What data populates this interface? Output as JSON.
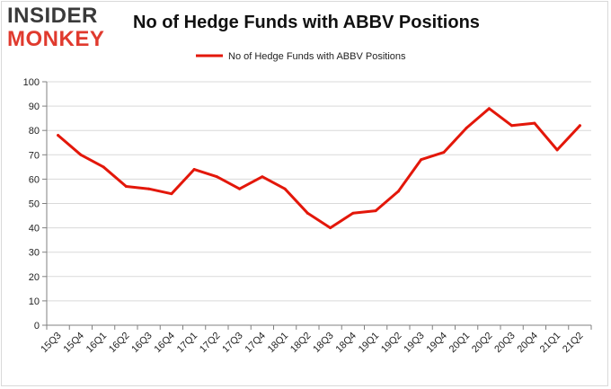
{
  "logo": {
    "line1": "INSIDER",
    "line2": "MONKEY"
  },
  "chart_data": {
    "type": "line",
    "title": "No of Hedge Funds with ABBV Positions",
    "xlabel": "",
    "ylabel": "",
    "categories": [
      "15Q3",
      "15Q4",
      "16Q1",
      "16Q2",
      "16Q3",
      "16Q4",
      "17Q1",
      "17Q2",
      "17Q3",
      "17Q4",
      "18Q1",
      "18Q2",
      "18Q3",
      "18Q4",
      "19Q1",
      "19Q2",
      "19Q3",
      "19Q4",
      "20Q1",
      "20Q2",
      "20Q3",
      "20Q4",
      "21Q1",
      "21Q2"
    ],
    "series": [
      {
        "name": "No of Hedge Funds with ABBV Positions",
        "color": "#e3170a",
        "values": [
          78,
          70,
          65,
          57,
          56,
          54,
          64,
          61,
          56,
          61,
          56,
          46,
          40,
          46,
          47,
          55,
          68,
          71,
          81,
          89,
          82,
          83,
          72,
          82
        ]
      }
    ],
    "ylim": [
      0,
      100
    ],
    "yticks": [
      0,
      10,
      20,
      30,
      40,
      50,
      60,
      70,
      80,
      90,
      100
    ],
    "grid": true,
    "legend": "top-center"
  }
}
